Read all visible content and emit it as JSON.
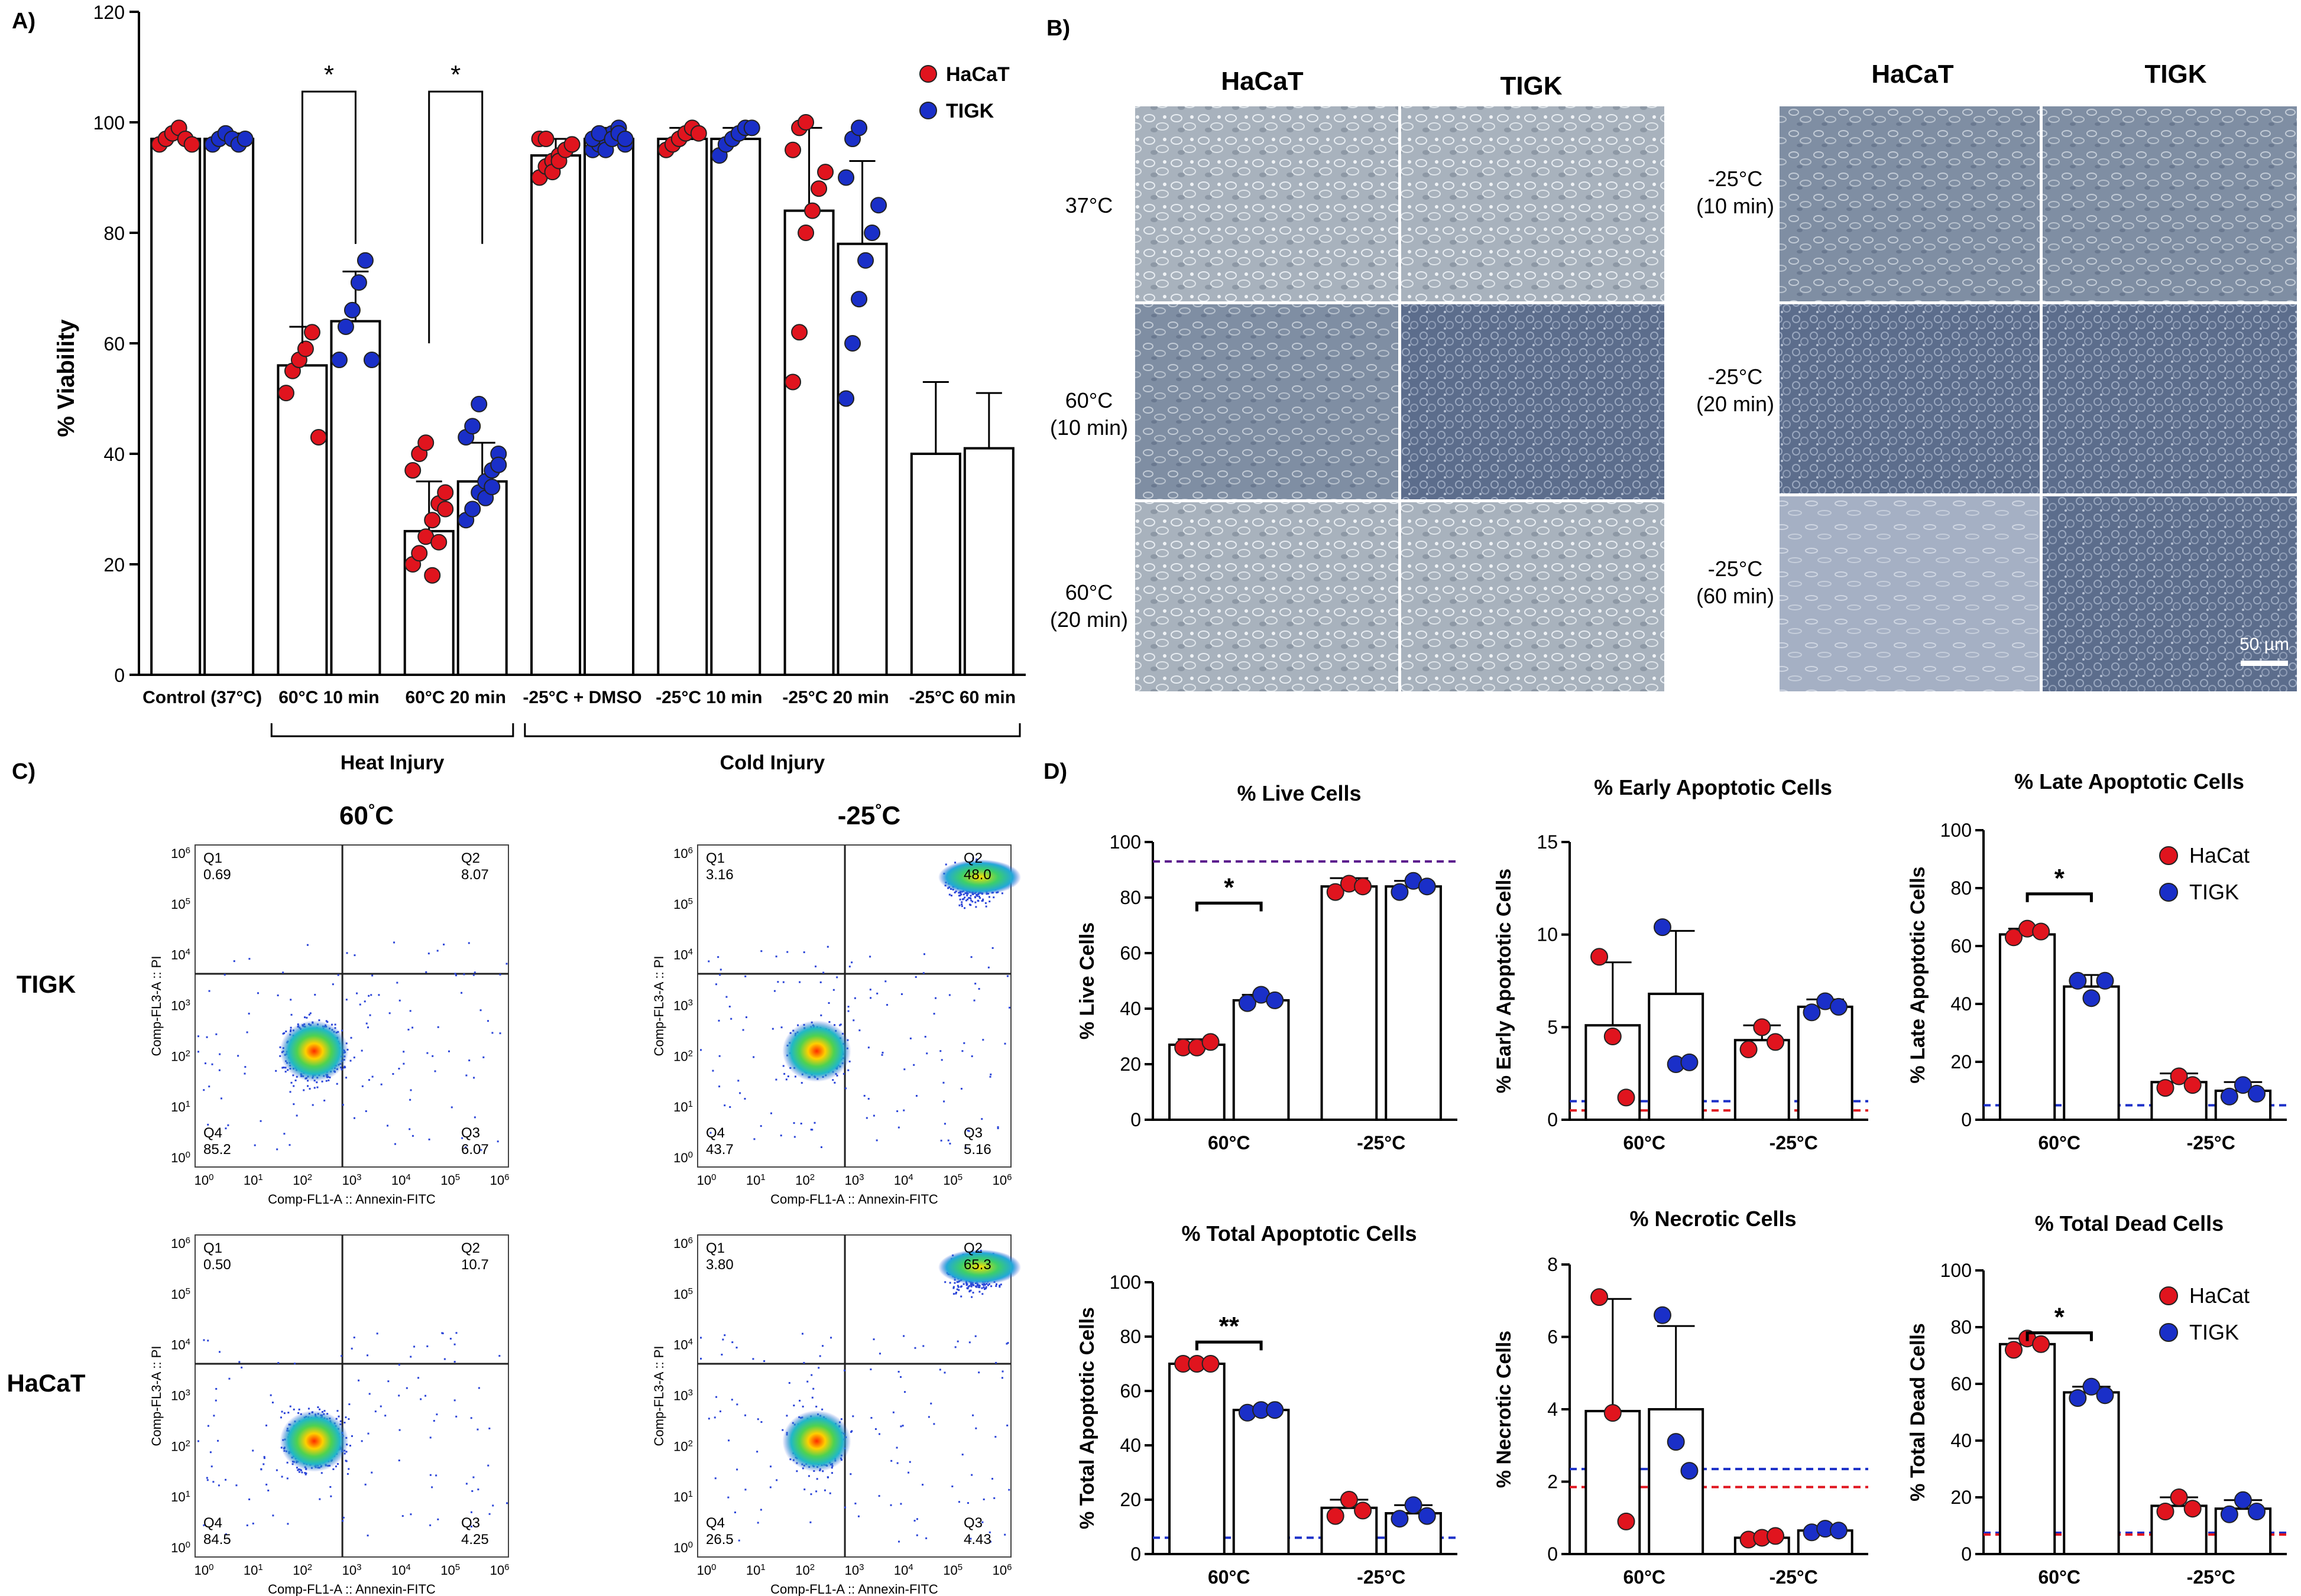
{
  "colors": {
    "hacat": "#e0141e",
    "tigk": "#1a2fc8",
    "purple_line": "#5a1a8c"
  },
  "panel_labels": {
    "a": "A)",
    "b": "B)",
    "c": "C)",
    "d": "D)"
  },
  "chart_data": [
    {
      "id": "A",
      "type": "bar",
      "ylabel": "% Viability",
      "ylim": [
        0,
        120
      ],
      "yticks": [
        0,
        20,
        40,
        60,
        80,
        100,
        120
      ],
      "categories": [
        "Control (37°C)",
        "60°C 10 min",
        "60°C 20 min",
        "-25°C + DMSO",
        "-25°C 10 min",
        "-25°C 20 min",
        "-25°C 60 min"
      ],
      "groups": [
        {
          "label": "Heat Injury",
          "from": 1,
          "to": 2
        },
        {
          "label": "Cold Injury",
          "from": 3,
          "to": 6
        }
      ],
      "legend": [
        "HaCaT",
        "TIGK"
      ],
      "significance": [
        {
          "category": 1,
          "label": "*"
        },
        {
          "category": 2,
          "label": "*"
        }
      ],
      "series": [
        {
          "name": "HaCaT",
          "values": [
            97,
            56,
            26,
            94,
            97,
            84,
            40
          ],
          "sd": [
            1,
            7,
            9,
            3,
            2,
            15,
            13
          ],
          "points": [
            [
              96,
              97,
              98,
              99,
              97,
              96
            ],
            [
              51,
              55,
              57,
              59,
              62,
              43
            ],
            [
              20,
              22,
              25,
              28,
              31,
              33,
              37,
              40,
              42,
              18,
              24,
              30
            ],
            [
              90,
              92,
              93,
              94,
              95,
              96,
              97,
              97,
              91,
              93,
              95,
              96
            ],
            [
              95,
              96,
              97,
              98,
              99,
              98
            ],
            [
              53,
              62,
              80,
              84,
              88,
              91,
              95,
              99,
              100
            ]
          ]
        },
        {
          "name": "TIGK",
          "values": [
            97,
            64,
            35,
            97,
            97,
            78,
            41
          ],
          "sd": [
            1,
            9,
            7,
            2,
            2,
            15,
            10
          ],
          "points": [
            [
              96,
              97,
              98,
              97,
              96,
              97
            ],
            [
              57,
              63,
              66,
              71,
              75,
              57
            ],
            [
              28,
              30,
              33,
              35,
              37,
              40,
              43,
              45,
              49,
              32,
              34,
              38
            ],
            [
              95,
              96,
              97,
              98,
              99,
              96,
              97,
              98,
              95,
              97,
              98,
              97
            ],
            [
              94,
              96,
              97,
              98,
              99,
              99
            ],
            [
              50,
              60,
              68,
              75,
              80,
              85,
              90,
              97,
              99
            ]
          ]
        }
      ]
    },
    {
      "id": "D1",
      "type": "bar",
      "title": "% Live Cells",
      "ylabel": "% Live  Cells",
      "ylim": [
        0,
        100
      ],
      "yticks": [
        0,
        20,
        40,
        60,
        80,
        100
      ],
      "categories": [
        "60°C",
        "-25°C"
      ],
      "ref_lines": [
        {
          "value": 93,
          "color": "purple"
        }
      ],
      "significance": [
        {
          "category": 0,
          "label": "*"
        }
      ],
      "series": [
        {
          "name": "HaCat",
          "values": [
            27,
            84
          ],
          "sd": [
            2,
            3
          ],
          "points": [
            [
              26,
              26,
              28
            ],
            [
              82,
              85,
              84
            ]
          ]
        },
        {
          "name": "TIGK",
          "values": [
            43,
            84
          ],
          "sd": [
            2,
            2
          ],
          "points": [
            [
              42,
              45,
              43
            ],
            [
              82,
              86,
              84
            ]
          ]
        }
      ]
    },
    {
      "id": "D2",
      "type": "bar",
      "title": "% Early Apoptotic Cells",
      "ylabel": "% Early Apoptotic Cells",
      "ylim": [
        0,
        15
      ],
      "yticks": [
        0,
        5,
        10,
        15
      ],
      "categories": [
        "60°C",
        "-25°C"
      ],
      "ref_lines": [
        {
          "value": 1.0,
          "color": "blue"
        },
        {
          "value": 0.6,
          "color": "red"
        }
      ],
      "significance": [],
      "series": [
        {
          "name": "HaCat",
          "values": [
            5.1,
            4.3
          ],
          "sd": [
            3.4,
            0.8
          ],
          "points": [
            [
              8.8,
              4.5,
              1.2
            ],
            [
              3.8,
              5.0,
              4.2
            ]
          ]
        },
        {
          "name": "TIGK",
          "values": [
            6.8,
            6.1
          ],
          "sd": [
            3.4,
            0.4
          ],
          "points": [
            [
              10.4,
              3.0,
              3.1
            ],
            [
              5.8,
              6.4,
              6.1
            ]
          ]
        }
      ]
    },
    {
      "id": "D3",
      "type": "bar",
      "title": "% Late Apoptotic Cells",
      "ylabel": "% Late Apoptotic Cells",
      "ylim": [
        0,
        100
      ],
      "yticks": [
        0,
        20,
        40,
        60,
        80,
        100
      ],
      "categories": [
        "60°C",
        "-25°C"
      ],
      "ref_lines": [
        {
          "value": 5,
          "color": "blue"
        }
      ],
      "legend": [
        "HaCat",
        "TIGK"
      ],
      "significance": [
        {
          "category": 0,
          "label": "*"
        }
      ],
      "series": [
        {
          "name": "HaCat",
          "values": [
            64,
            13
          ],
          "sd": [
            2,
            3
          ],
          "points": [
            [
              63,
              66,
              65
            ],
            [
              11,
              15,
              12
            ]
          ]
        },
        {
          "name": "TIGK",
          "values": [
            46,
            10
          ],
          "sd": [
            4,
            3
          ],
          "points": [
            [
              48,
              42,
              48
            ],
            [
              8,
              12,
              9
            ]
          ]
        }
      ]
    },
    {
      "id": "D4",
      "type": "bar",
      "title": "% Total Apoptotic Cells",
      "ylabel": "% Total Apoptotic Cells",
      "ylim": [
        0,
        100
      ],
      "yticks": [
        0,
        20,
        40,
        60,
        80,
        100
      ],
      "categories": [
        "60°C",
        "-25°C"
      ],
      "ref_lines": [
        {
          "value": 6,
          "color": "blue"
        }
      ],
      "significance": [
        {
          "category": 0,
          "label": "**"
        }
      ],
      "series": [
        {
          "name": "HaCat",
          "values": [
            70,
            17
          ],
          "sd": [
            1,
            3
          ],
          "points": [
            [
              70,
              70,
              70
            ],
            [
              14,
              20,
              16
            ]
          ]
        },
        {
          "name": "TIGK",
          "values": [
            53,
            15
          ],
          "sd": [
            1,
            3
          ],
          "points": [
            [
              52,
              53,
              53
            ],
            [
              13,
              18,
              14
            ]
          ]
        }
      ]
    },
    {
      "id": "D5",
      "type": "bar",
      "title": "% Necrotic Cells",
      "ylabel": "% Necrotic Cells",
      "ylim": [
        0,
        8
      ],
      "yticks": [
        0,
        2,
        4,
        6,
        8
      ],
      "categories": [
        "60°C",
        "-25°C"
      ],
      "ref_lines": [
        {
          "value": 2.35,
          "color": "blue"
        },
        {
          "value": 1.9,
          "color": "red"
        }
      ],
      "significance": [],
      "series": [
        {
          "name": "HaCat",
          "values": [
            3.95,
            0.45
          ],
          "sd": [
            3.1,
            0.1
          ],
          "points": [
            [
              7.1,
              3.9,
              0.9
            ],
            [
              0.4,
              0.45,
              0.5
            ]
          ]
        },
        {
          "name": "TIGK",
          "values": [
            4.0,
            0.65
          ],
          "sd": [
            2.3,
            0.1
          ],
          "points": [
            [
              6.6,
              3.1,
              2.3
            ],
            [
              0.6,
              0.7,
              0.65
            ]
          ]
        }
      ]
    },
    {
      "id": "D6",
      "type": "bar",
      "title": "% Total Dead Cells",
      "ylabel": "% Total Dead Cells",
      "ylim": [
        0,
        100
      ],
      "yticks": [
        0,
        20,
        40,
        60,
        80,
        100
      ],
      "categories": [
        "60°C",
        "-25°C"
      ],
      "ref_lines": [
        {
          "value": 7.5,
          "color": "blue"
        },
        {
          "value": 7.5,
          "color": "red"
        }
      ],
      "legend": [
        "HaCat",
        "TIGK"
      ],
      "significance": [
        {
          "category": 0,
          "label": "*"
        }
      ],
      "series": [
        {
          "name": "HaCat",
          "values": [
            74,
            17
          ],
          "sd": [
            2,
            3
          ],
          "points": [
            [
              72,
              76,
              74
            ],
            [
              15,
              20,
              16
            ]
          ]
        },
        {
          "name": "TIGK",
          "values": [
            57,
            16
          ],
          "sd": [
            2,
            3
          ],
          "points": [
            [
              55,
              59,
              56
            ],
            [
              14,
              19,
              15
            ]
          ]
        }
      ]
    }
  ],
  "micrographs": {
    "left_cols": [
      "HaCaT",
      "TIGK"
    ],
    "left_rows": [
      "37°C",
      "60°C (10 min)",
      "60°C (20 min)"
    ],
    "right_cols": [
      "HaCaT",
      "TIGK"
    ],
    "right_rows": [
      "-25°C (10 min)",
      "-25°C (20 min)",
      "-25°C (60 min)"
    ],
    "scale_bar": "50 µm"
  },
  "flow": {
    "col_titles": [
      "60°C",
      "-25°C"
    ],
    "row_labels": [
      "TIGK",
      "HaCaT"
    ],
    "x_axis": "Comp-FL1-A :: Annexin-FITC",
    "y_axis": "Comp-FL3-A :: PI",
    "tick_labels": {
      "e0": "10",
      "e1": "10",
      "e2": "10",
      "e3": "10",
      "e4": "10",
      "e5": "10",
      "e6": "10"
    },
    "plots": [
      {
        "q1": "Q1",
        "q1v": "0.69",
        "q2": "Q2",
        "q2v": "8.07",
        "q3": "Q3",
        "q3v": "6.07",
        "q4": "Q4",
        "q4v": "85.2"
      },
      {
        "q1": "Q1",
        "q1v": "3.16",
        "q2": "Q2",
        "q2v": "48.0",
        "q3": "Q3",
        "q3v": "5.16",
        "q4": "Q4",
        "q4v": "43.7"
      },
      {
        "q1": "Q1",
        "q1v": "0.50",
        "q2": "Q2",
        "q2v": "10.7",
        "q3": "Q3",
        "q3v": "4.25",
        "q4": "Q4",
        "q4v": "84.5"
      },
      {
        "q1": "Q1",
        "q1v": "3.80",
        "q2": "Q2",
        "q2v": "65.3",
        "q3": "Q3",
        "q3v": "4.43",
        "q4": "Q4",
        "q4v": "26.5"
      }
    ]
  }
}
